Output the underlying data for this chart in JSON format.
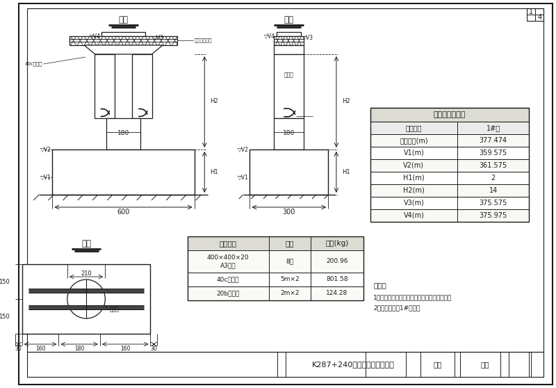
{
  "bg_color": "#ffffff",
  "paper_color": "#f5f4ee",
  "line_color": "#1a1a1a",
  "title": "K287+240便桥桥墩一般构造图",
  "table1_title": "桥墩标高尺寸表",
  "table1_col1": "桥墩编号",
  "table1_col2": "1#墩",
  "table1_rows": [
    [
      "设计高程(m)",
      "377.474"
    ],
    [
      "V1(m)",
      "359.575"
    ],
    [
      "V2(m)",
      "361.575"
    ],
    [
      "H1(m)",
      "2"
    ],
    [
      "H2(m)",
      "14"
    ],
    [
      "V3(m)",
      "375.575"
    ],
    [
      "V4(m)",
      "375.975"
    ]
  ],
  "table2_col1": "工程项目",
  "table2_col2": "数量",
  "table2_col3": "重量(kg)",
  "table2_row1_c1": "400×400×20\nA3锠板",
  "table2_row1_c2": "8块",
  "table2_row1_c3": "200.96",
  "table2_row2_c1": "40c工字锠",
  "table2_row2_c2": "5m×2",
  "table2_row2_c3": "801.58",
  "table2_row3_c1": "20b工字锠",
  "table2_row3_c2": "2m×2",
  "table2_row3_c3": "124.28",
  "label_front": "立面",
  "label_side": "侧面",
  "label_plan": "平面",
  "label_shangdunban": "上墩板",
  "label_shigongzhuyishi": "施工注意事项",
  "label_40c": "40c工字锠",
  "label_gangban": "400×400×20\nA3锠板",
  "note_title": "说明：",
  "note1": "1、本图尺寸除高程以米计外，余均以厘米计。",
  "note2": "2、本图使用于1#桥墩。",
  "footer_title": "K287+240便桥桥墩一般构造图",
  "footer_design": "设计",
  "footer_check": "复核",
  "page1": "1",
  "page2": "4"
}
